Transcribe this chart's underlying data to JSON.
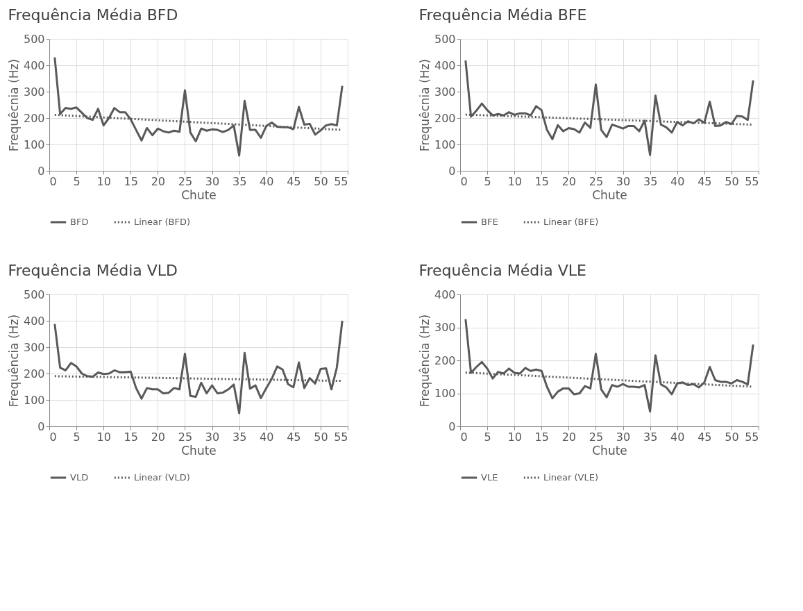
{
  "chart_data": [
    {
      "type": "line",
      "title": "Frequência Média BFD",
      "xlabel": "Chute",
      "ylabel": "Frequêcnia (Hz)",
      "xlim": [
        0,
        55
      ],
      "xticks": [
        0,
        5,
        10,
        15,
        20,
        25,
        30,
        35,
        40,
        45,
        50,
        55
      ],
      "ylim": [
        0,
        500
      ],
      "yticks": [
        0,
        100,
        200,
        300,
        400,
        500
      ],
      "grid": true,
      "legend": "bottom",
      "marker": "none",
      "series": [
        {
          "name": "BFD",
          "color": "#595959",
          "line_style": "solid",
          "x": [
            1,
            2,
            3,
            4,
            5,
            6,
            7,
            8,
            9,
            10,
            11,
            12,
            13,
            14,
            15,
            16,
            17,
            18,
            19,
            20,
            21,
            22,
            23,
            24,
            25,
            26,
            27,
            28,
            29,
            30,
            31,
            32,
            33,
            34,
            35,
            36,
            37,
            38,
            39,
            40,
            41,
            42,
            43,
            44,
            45,
            46,
            47,
            48,
            49,
            50,
            51,
            52,
            53,
            54
          ],
          "values": [
            430,
            215,
            238,
            235,
            240,
            220,
            200,
            193,
            235,
            172,
            200,
            238,
            222,
            222,
            195,
            155,
            115,
            162,
            135,
            160,
            150,
            145,
            152,
            148,
            305,
            145,
            112,
            160,
            152,
            157,
            155,
            147,
            155,
            172,
            58,
            265,
            155,
            155,
            125,
            170,
            183,
            167,
            165,
            165,
            158,
            242,
            175,
            178,
            137,
            153,
            172,
            177,
            172,
            322
          ]
        },
        {
          "name": "Linear (BFD)",
          "color": "#595959",
          "line_style": "dotted",
          "x": [
            1,
            54
          ],
          "values": [
            212,
            155
          ]
        }
      ]
    },
    {
      "type": "line",
      "title": "Frequência Média BFE",
      "xlabel": "Chute",
      "ylabel": "Frequêcnia (Hz)",
      "xlim": [
        0,
        55
      ],
      "xticks": [
        0,
        5,
        10,
        15,
        20,
        25,
        30,
        35,
        40,
        45,
        50,
        55
      ],
      "ylim": [
        0,
        500
      ],
      "yticks": [
        0,
        100,
        200,
        300,
        400,
        500
      ],
      "grid": true,
      "legend": "bottom",
      "marker": "none",
      "series": [
        {
          "name": "BFE",
          "color": "#595959",
          "line_style": "solid",
          "x": [
            1,
            2,
            3,
            4,
            5,
            6,
            7,
            8,
            9,
            10,
            11,
            12,
            13,
            14,
            15,
            16,
            17,
            18,
            19,
            20,
            21,
            22,
            23,
            24,
            25,
            26,
            27,
            28,
            29,
            30,
            31,
            32,
            33,
            34,
            35,
            36,
            37,
            38,
            39,
            40,
            41,
            42,
            43,
            44,
            45,
            46,
            47,
            48,
            49,
            50,
            51,
            52,
            53,
            54
          ],
          "values": [
            418,
            205,
            228,
            255,
            230,
            210,
            215,
            210,
            222,
            212,
            218,
            218,
            210,
            245,
            230,
            155,
            120,
            173,
            150,
            162,
            158,
            145,
            183,
            163,
            327,
            155,
            128,
            175,
            168,
            160,
            170,
            170,
            150,
            190,
            60,
            285,
            175,
            165,
            145,
            185,
            172,
            188,
            180,
            195,
            182,
            262,
            170,
            172,
            185,
            177,
            208,
            206,
            193,
            343
          ]
        },
        {
          "name": "Linear (BFE)",
          "color": "#595959",
          "line_style": "dotted",
          "x": [
            1,
            54
          ],
          "values": [
            213,
            175
          ]
        }
      ]
    },
    {
      "type": "line",
      "title": "Frequência Média VLD",
      "xlabel": "Chute",
      "ylabel": "Frequência (Hz)",
      "xlim": [
        0,
        55
      ],
      "xticks": [
        0,
        5,
        10,
        15,
        20,
        25,
        30,
        35,
        40,
        45,
        50,
        55
      ],
      "ylim": [
        0,
        500
      ],
      "yticks": [
        0,
        100,
        200,
        300,
        400,
        500
      ],
      "grid": true,
      "legend": "bottom",
      "marker": "none",
      "series": [
        {
          "name": "VLD",
          "color": "#595959",
          "line_style": "solid",
          "x": [
            1,
            2,
            3,
            4,
            5,
            6,
            7,
            8,
            9,
            10,
            11,
            12,
            13,
            14,
            15,
            16,
            17,
            18,
            19,
            20,
            21,
            22,
            23,
            24,
            25,
            26,
            27,
            28,
            29,
            30,
            31,
            32,
            33,
            34,
            35,
            36,
            37,
            38,
            39,
            40,
            41,
            42,
            43,
            44,
            45,
            46,
            47,
            48,
            49,
            50,
            51,
            52,
            53,
            54
          ],
          "values": [
            388,
            222,
            212,
            240,
            227,
            200,
            190,
            188,
            204,
            198,
            200,
            212,
            205,
            205,
            207,
            145,
            105,
            145,
            140,
            140,
            125,
            127,
            145,
            140,
            275,
            115,
            112,
            165,
            125,
            155,
            125,
            128,
            140,
            158,
            50,
            278,
            143,
            155,
            107,
            145,
            180,
            227,
            215,
            160,
            148,
            242,
            145,
            183,
            162,
            217,
            220,
            140,
            223,
            400
          ]
        },
        {
          "name": "Linear (VLD)",
          "color": "#595959",
          "line_style": "dotted",
          "x": [
            1,
            54
          ],
          "values": [
            190,
            172
          ]
        }
      ]
    },
    {
      "type": "line",
      "title": "Frequência Média VLE",
      "xlabel": "Chute",
      "ylabel": "Frequência (Hz)",
      "xlim": [
        0,
        55
      ],
      "xticks": [
        0,
        5,
        10,
        15,
        20,
        25,
        30,
        35,
        40,
        45,
        50,
        55
      ],
      "ylim": [
        0,
        400
      ],
      "yticks": [
        0,
        100,
        200,
        300,
        400
      ],
      "grid": true,
      "legend": "bottom",
      "marker": "none",
      "series": [
        {
          "name": "VLE",
          "color": "#595959",
          "line_style": "solid",
          "x": [
            1,
            2,
            3,
            4,
            5,
            6,
            7,
            8,
            9,
            10,
            11,
            12,
            13,
            14,
            15,
            16,
            17,
            18,
            19,
            20,
            21,
            22,
            23,
            24,
            25,
            26,
            27,
            28,
            29,
            30,
            31,
            32,
            33,
            34,
            35,
            36,
            37,
            38,
            39,
            40,
            41,
            42,
            43,
            44,
            45,
            46,
            47,
            48,
            49,
            50,
            51,
            52,
            53,
            54
          ],
          "values": [
            325,
            162,
            180,
            195,
            175,
            145,
            165,
            160,
            175,
            162,
            160,
            177,
            168,
            172,
            168,
            120,
            85,
            105,
            115,
            115,
            97,
            100,
            122,
            115,
            220,
            112,
            88,
            125,
            120,
            128,
            120,
            120,
            118,
            125,
            45,
            215,
            127,
            118,
            97,
            130,
            133,
            125,
            128,
            118,
            133,
            180,
            140,
            135,
            135,
            130,
            140,
            135,
            127,
            248
          ]
        },
        {
          "name": "Linear (VLE)",
          "color": "#595959",
          "line_style": "dotted",
          "x": [
            1,
            54
          ],
          "values": [
            163,
            120
          ]
        }
      ]
    }
  ]
}
